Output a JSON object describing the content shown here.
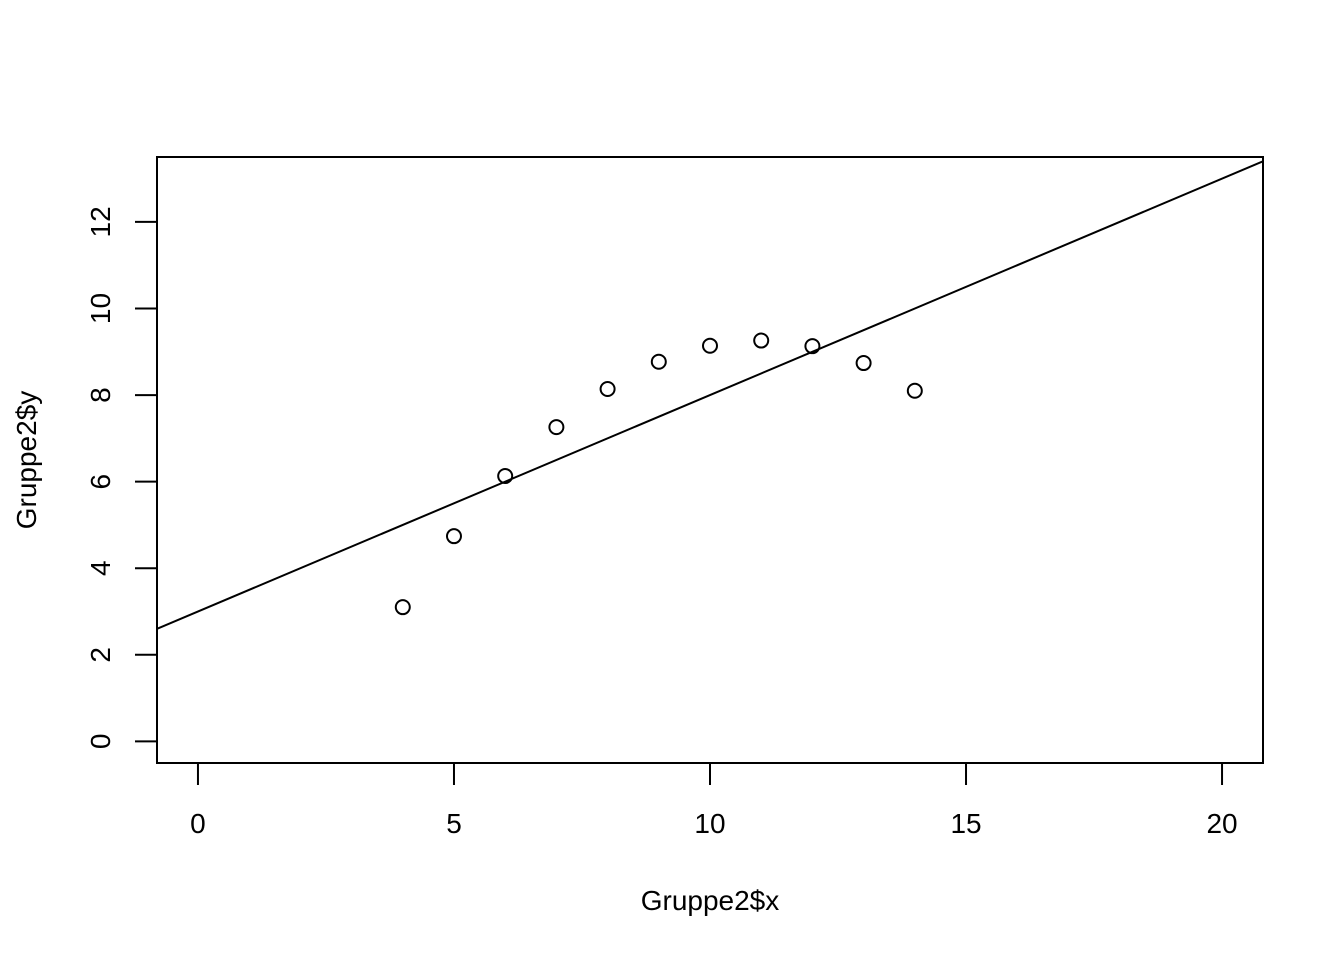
{
  "chart_data": {
    "type": "scatter",
    "title": "",
    "xlabel": "Gruppe2$x",
    "ylabel": "Gruppe2$y",
    "xlim": [
      -0.8,
      20.8
    ],
    "ylim": [
      -0.5,
      13.5
    ],
    "x_ticks": [
      0,
      5,
      10,
      15,
      20
    ],
    "y_ticks": [
      0,
      2,
      4,
      6,
      8,
      10,
      12
    ],
    "x_tick_labels": [
      "0",
      "5",
      "10",
      "15",
      "20"
    ],
    "y_tick_labels": [
      "0",
      "2",
      "4",
      "6",
      "8",
      "10",
      "12"
    ],
    "points": [
      {
        "x": 4,
        "y": 3.1
      },
      {
        "x": 5,
        "y": 4.74
      },
      {
        "x": 6,
        "y": 6.13
      },
      {
        "x": 7,
        "y": 7.26
      },
      {
        "x": 8,
        "y": 8.14
      },
      {
        "x": 9,
        "y": 8.77
      },
      {
        "x": 10,
        "y": 9.14
      },
      {
        "x": 11,
        "y": 9.26
      },
      {
        "x": 12,
        "y": 9.13
      },
      {
        "x": 13,
        "y": 8.74
      },
      {
        "x": 14,
        "y": 8.1
      }
    ],
    "fit_line": {
      "intercept": 3.0,
      "slope": 0.5
    },
    "grid": false,
    "legend": "none",
    "marker": "open-circle",
    "color": "#000000"
  }
}
